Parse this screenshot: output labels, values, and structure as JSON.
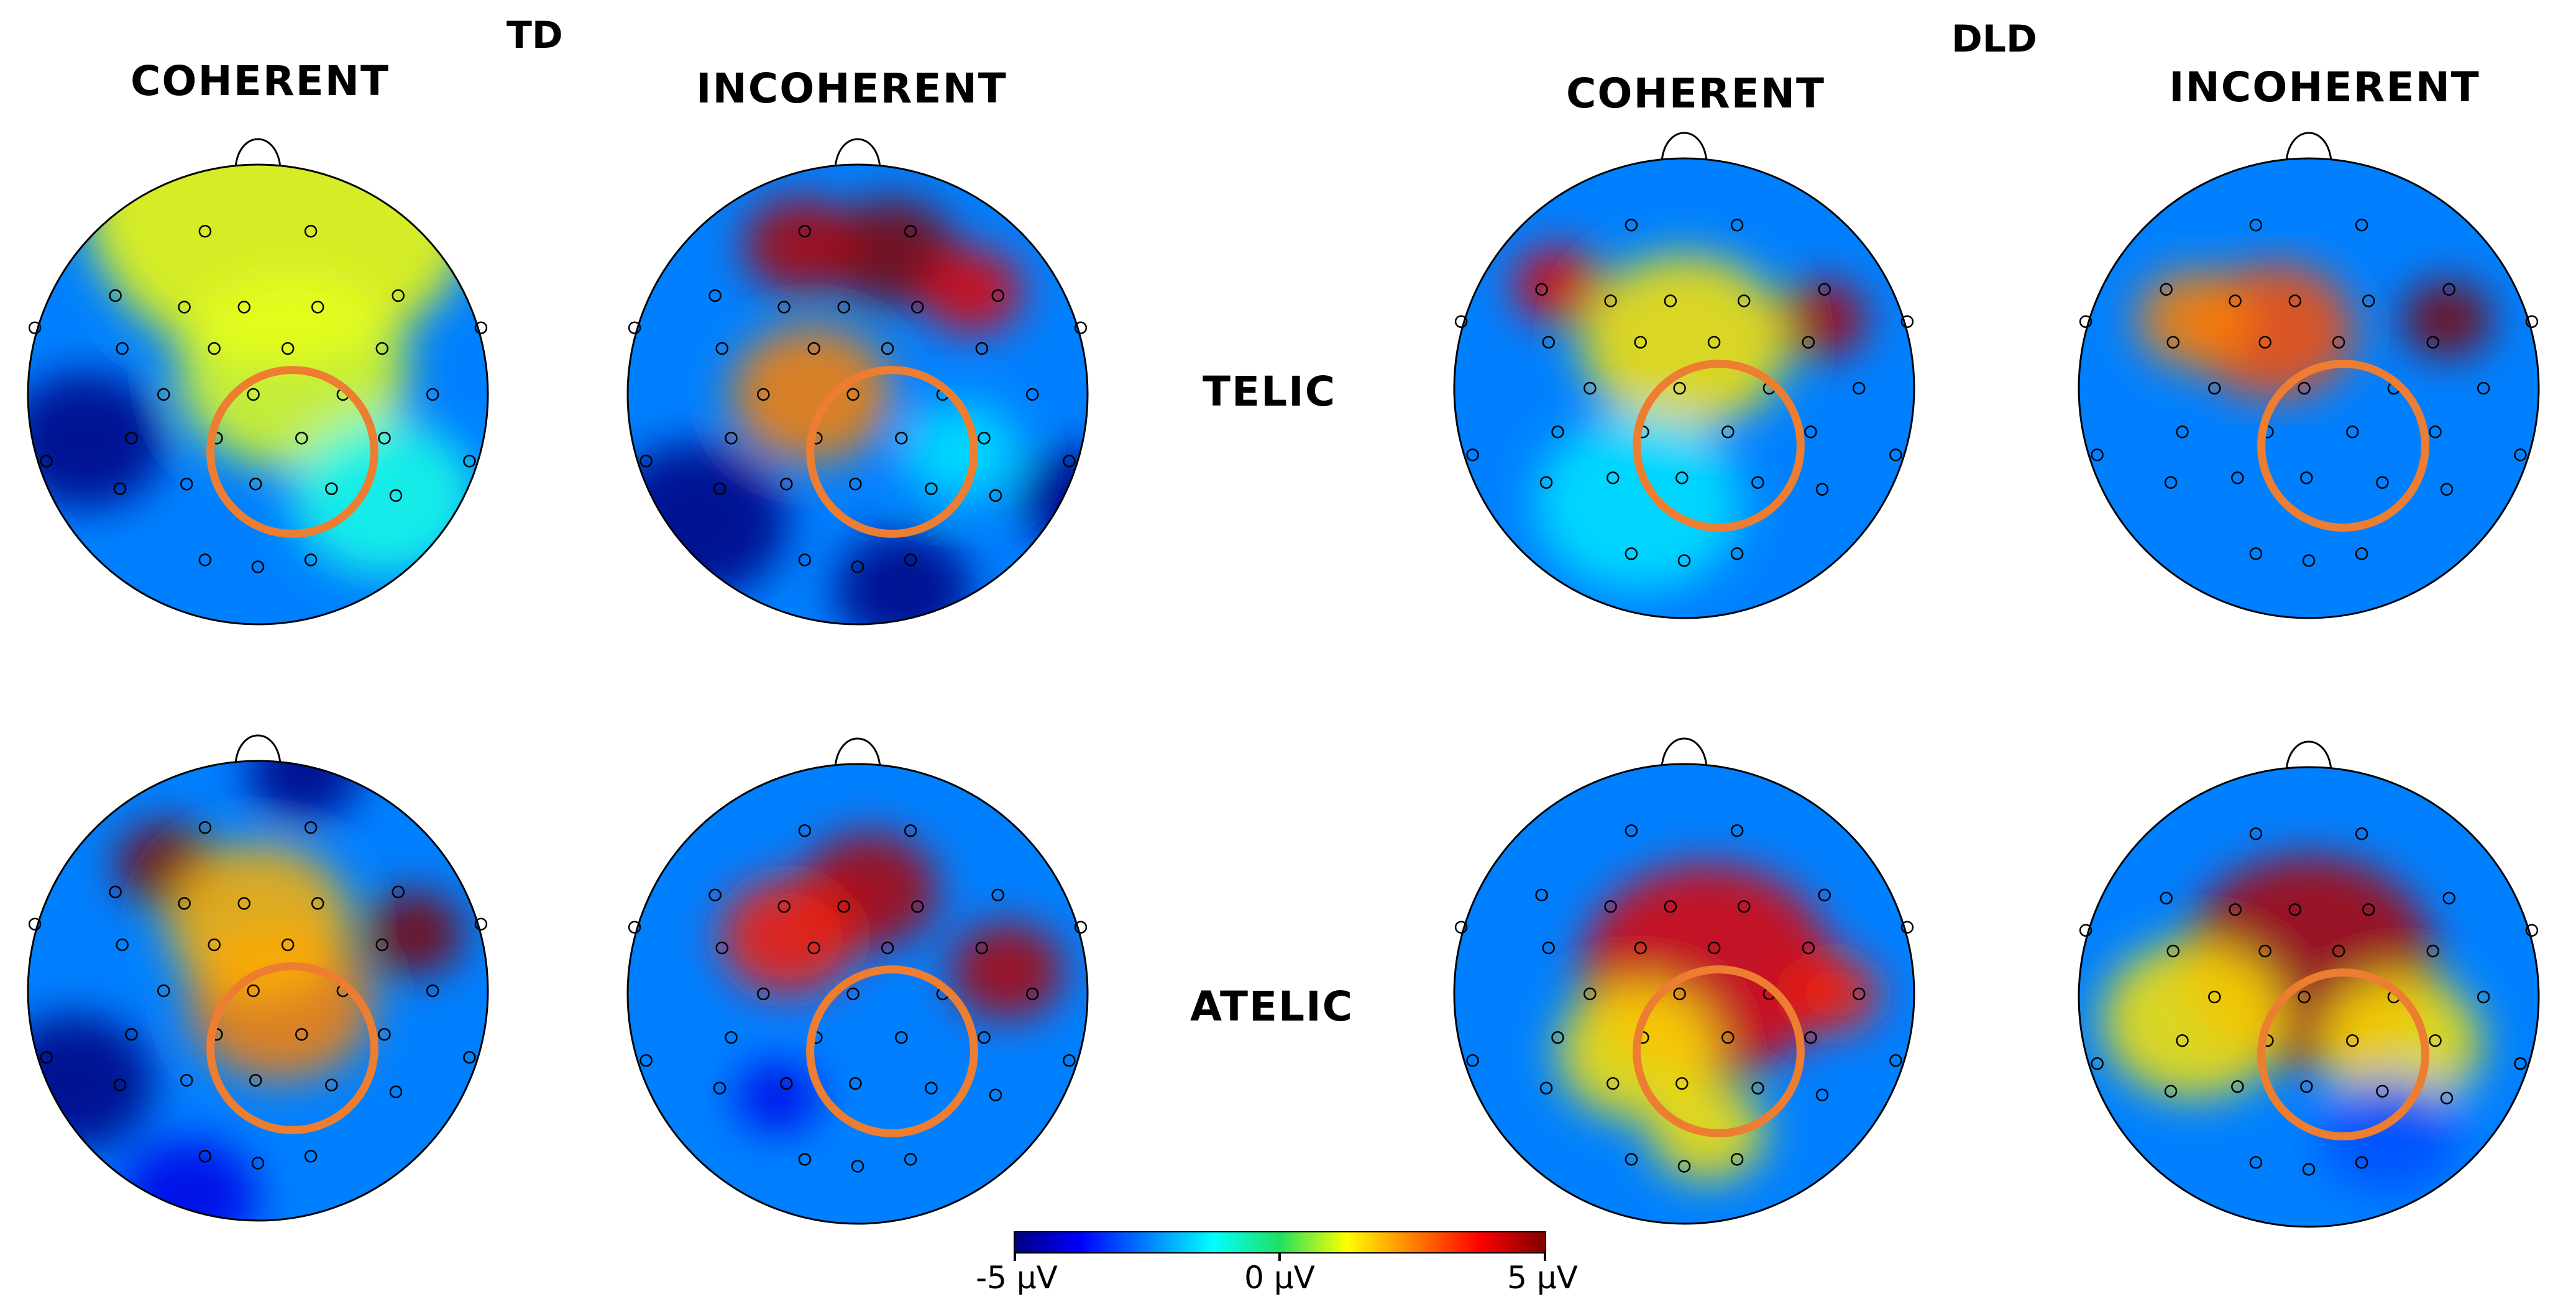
{
  "groups": {
    "td": "TD",
    "dld": "DLD"
  },
  "columns": {
    "coherent": "COHERENT",
    "incoherent": "INCOHERENT"
  },
  "rows": {
    "telic": "TELIC",
    "atelic": "ATELIC"
  },
  "colorbar": {
    "min_label": "-5 μV",
    "mid_label": "0 μV",
    "max_label": "5 μV",
    "range_uv": [
      -5,
      5
    ],
    "colormap": "jet"
  },
  "colors": {
    "roi_circle": "#ED7D31",
    "head_outline": "#000000",
    "electrode": "#000000"
  },
  "topomaps": [
    {
      "group": "TD",
      "condition": "COHERENT",
      "row": "TELIC",
      "blobs": [
        {
          "u": 0.1,
          "v": -0.85,
          "a": 0.85,
          "uv": 1.2
        },
        {
          "u": 0.15,
          "v": -0.1,
          "a": 0.5,
          "uv": 1.0
        },
        {
          "u": -0.75,
          "v": 0.2,
          "a": 0.35,
          "uv": -6.0
        },
        {
          "u": 0.55,
          "v": 0.45,
          "a": 0.4,
          "uv": -1.0
        }
      ]
    },
    {
      "group": "TD",
      "condition": "INCOHERENT",
      "row": "TELIC",
      "blobs": [
        {
          "u": 0.15,
          "v": -0.62,
          "a": 0.28,
          "uv": 6.0
        },
        {
          "u": -0.25,
          "v": -0.65,
          "a": 0.25,
          "uv": 4.5
        },
        {
          "u": 0.5,
          "v": -0.45,
          "a": 0.22,
          "uv": 4.0
        },
        {
          "u": -0.2,
          "v": 0.0,
          "a": 0.35,
          "uv": 2.5
        },
        {
          "u": -0.7,
          "v": 0.55,
          "a": 0.4,
          "uv": -7.0
        },
        {
          "u": 0.2,
          "v": 0.85,
          "a": 0.3,
          "uv": -5.0
        },
        {
          "u": 0.95,
          "v": 0.45,
          "a": 0.25,
          "uv": -5.0
        },
        {
          "u": 0.45,
          "v": 0.25,
          "a": 0.25,
          "uv": -1.5
        }
      ]
    },
    {
      "group": "DLD",
      "condition": "COHERENT",
      "row": "TELIC",
      "blobs": [
        {
          "u": -0.55,
          "v": -0.45,
          "a": 0.2,
          "uv": 4.0
        },
        {
          "u": 0.6,
          "v": -0.3,
          "a": 0.2,
          "uv": 4.5
        },
        {
          "u": 0.0,
          "v": -0.2,
          "a": 0.45,
          "uv": 1.5
        },
        {
          "u": -0.2,
          "v": 0.5,
          "a": 0.45,
          "uv": -1.5
        }
      ]
    },
    {
      "group": "DLD",
      "condition": "INCOHERENT",
      "row": "TELIC",
      "blobs": [
        {
          "u": 0.6,
          "v": -0.3,
          "a": 0.2,
          "uv": 6.5
        },
        {
          "u": -0.15,
          "v": -0.25,
          "a": 0.35,
          "uv": 3.0
        },
        {
          "u": -0.5,
          "v": -0.3,
          "a": 0.25,
          "uv": 2.5
        }
      ]
    },
    {
      "group": "TD",
      "condition": "COHERENT",
      "row": "ATELIC",
      "blobs": [
        {
          "u": 0.68,
          "v": -0.25,
          "a": 0.22,
          "uv": 8.0
        },
        {
          "u": -0.4,
          "v": -0.55,
          "a": 0.22,
          "uv": 5.5
        },
        {
          "u": 0.1,
          "v": 0.05,
          "a": 0.4,
          "uv": 2.5
        },
        {
          "u": 0.0,
          "v": -0.3,
          "a": 0.4,
          "uv": 2.0
        },
        {
          "u": 0.2,
          "v": -0.95,
          "a": 0.25,
          "uv": -6.0
        },
        {
          "u": -0.8,
          "v": 0.4,
          "a": 0.35,
          "uv": -7.0
        },
        {
          "u": -0.3,
          "v": 0.9,
          "a": 0.3,
          "uv": -4.0
        }
      ]
    },
    {
      "group": "TD",
      "condition": "INCOHERENT",
      "row": "ATELIC",
      "blobs": [
        {
          "u": 0.05,
          "v": -0.45,
          "a": 0.3,
          "uv": 4.5
        },
        {
          "u": 0.65,
          "v": -0.1,
          "a": 0.25,
          "uv": 4.5
        },
        {
          "u": -0.3,
          "v": -0.25,
          "a": 0.3,
          "uv": 3.5
        },
        {
          "u": -0.35,
          "v": 0.45,
          "a": 0.18,
          "uv": -4.0
        }
      ]
    },
    {
      "group": "DLD",
      "condition": "COHERENT",
      "row": "ATELIC",
      "blobs": [
        {
          "u": 0.1,
          "v": -0.1,
          "a": 0.55,
          "uv": 4.0
        },
        {
          "u": 0.65,
          "v": 0.0,
          "a": 0.2,
          "uv": 3.5
        },
        {
          "u": -0.2,
          "v": 0.25,
          "a": 0.35,
          "uv": 1.5
        },
        {
          "u": 0.1,
          "v": 0.6,
          "a": 0.25,
          "uv": 1.5
        }
      ]
    },
    {
      "group": "DLD",
      "condition": "INCOHERENT",
      "row": "ATELIC",
      "blobs": [
        {
          "u": 0.0,
          "v": -0.15,
          "a": 0.55,
          "uv": 4.5
        },
        {
          "u": -0.5,
          "v": 0.1,
          "a": 0.4,
          "uv": 1.5
        },
        {
          "u": 0.4,
          "v": 0.2,
          "a": 0.35,
          "uv": 1.5
        },
        {
          "u": 0.35,
          "v": 0.6,
          "a": 0.3,
          "uv": -3.0
        }
      ]
    }
  ]
}
